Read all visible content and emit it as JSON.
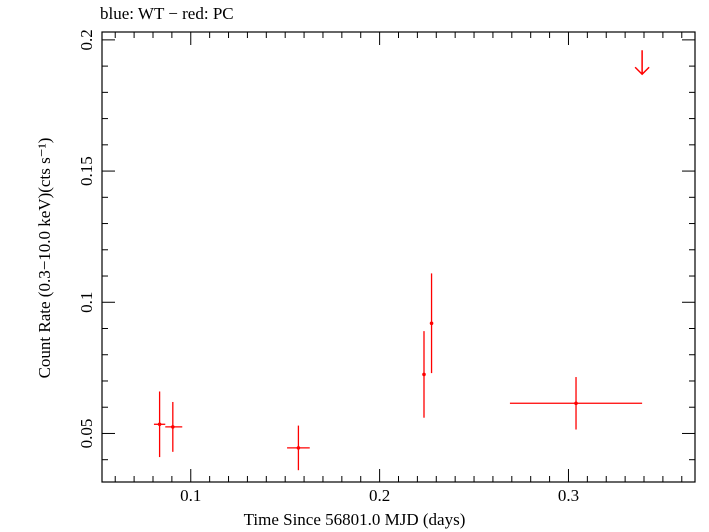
{
  "chart_data": {
    "type": "scatter",
    "title": "blue: WT − red: PC",
    "xlabel": "Time Since 56801.0 MJD (days)",
    "ylabel": "Count Rate (0.3−10.0 keV)(cts s⁻¹)",
    "xlim": [
      0.053,
      0.367
    ],
    "ylim": [
      0.0315,
      0.203
    ],
    "x_ticks": [
      0.1,
      0.2,
      0.3
    ],
    "x_tick_labels": [
      "0.1",
      "0.2",
      "0.3"
    ],
    "y_ticks": [
      0.05,
      0.1,
      0.15,
      0.2
    ],
    "y_tick_labels": [
      "0.05",
      "0.1",
      "0.15",
      "0.2"
    ],
    "grid": false,
    "series": [
      {
        "color": "#ff0000",
        "points": [
          {
            "x": 0.0835,
            "xerr": [
              0.003,
              0.003
            ],
            "y": 0.0535,
            "yerr": [
              0.0125,
              0.0125
            ]
          },
          {
            "x": 0.0905,
            "xerr": [
              0.004,
              0.005
            ],
            "y": 0.0525,
            "yerr": [
              0.0095,
              0.0095
            ]
          },
          {
            "x": 0.157,
            "xerr": [
              0.006,
              0.006
            ],
            "y": 0.0445,
            "yerr": [
              0.0085,
              0.0085
            ]
          },
          {
            "x": 0.2235,
            "xerr": [
              0.0,
              0.0
            ],
            "y": 0.0725,
            "yerr": [
              0.0165,
              0.0165
            ]
          },
          {
            "x": 0.2275,
            "xerr": [
              0.0,
              0.0
            ],
            "y": 0.092,
            "yerr": [
              0.019,
              0.019
            ]
          },
          {
            "x": 0.304,
            "xerr": [
              0.035,
              0.035
            ],
            "y": 0.0615,
            "yerr": [
              0.01,
              0.01
            ]
          }
        ],
        "upper_limits": [
          {
            "x": 0.339,
            "y": 0.193
          }
        ]
      }
    ]
  }
}
